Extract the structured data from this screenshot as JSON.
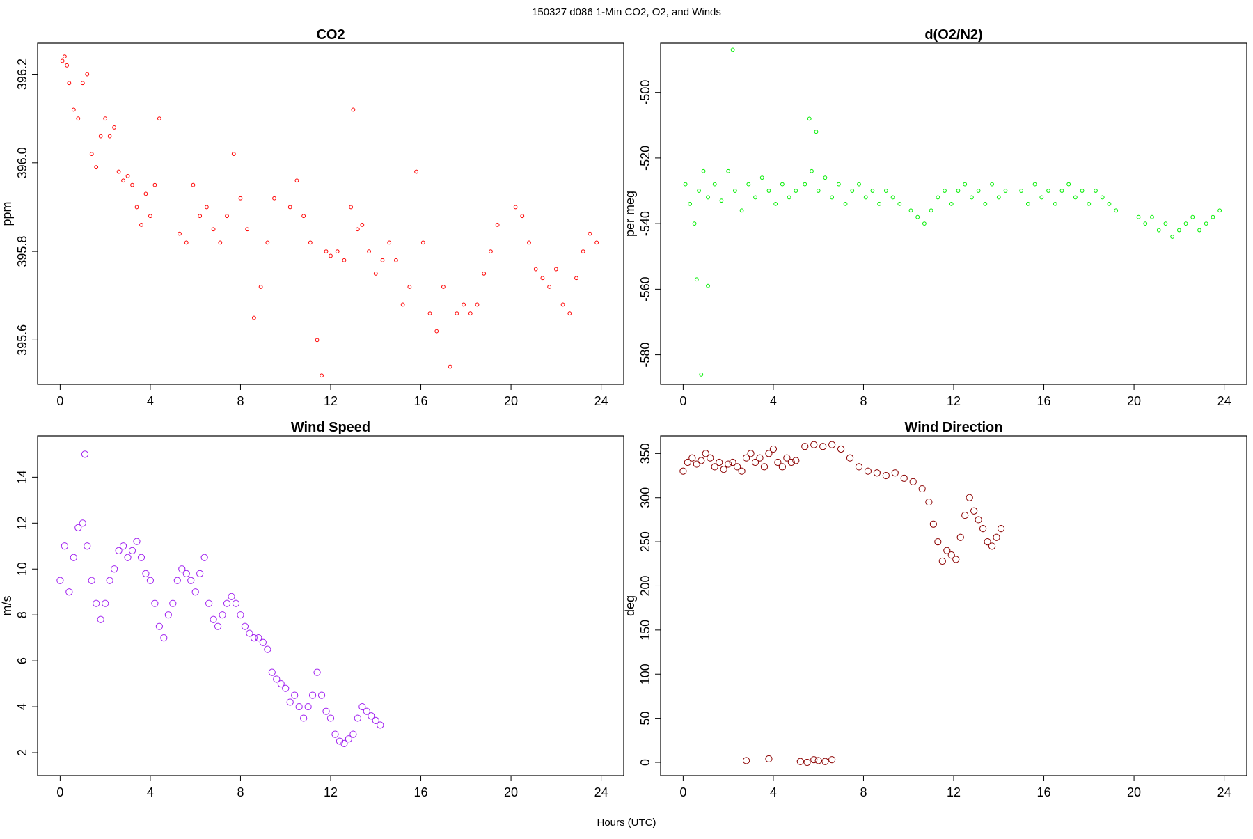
{
  "page_title": "150327   d086   1-Min CO2, O2, and Winds",
  "x_axis_label": "Hours (UTC)",
  "chart_data": [
    {
      "type": "scatter",
      "id": "co2",
      "title": "CO2",
      "ylabel": "ppm",
      "xlabel": "",
      "xlim": [
        -1,
        25
      ],
      "ylim": [
        395.5,
        396.27
      ],
      "x_ticks": [
        0,
        4,
        8,
        12,
        16,
        20,
        24
      ],
      "y_ticks": [
        395.6,
        395.8,
        396.0,
        396.2
      ],
      "y_tick_labels": [
        "395.6",
        "395.8",
        "396.0",
        "396.2"
      ],
      "marker_color": "#ff0000",
      "grid": false,
      "x": [
        0.1,
        0.2,
        0.3,
        0.4,
        0.6,
        0.8,
        1.0,
        1.2,
        1.4,
        1.6,
        1.8,
        2.0,
        2.2,
        2.4,
        2.6,
        2.8,
        3.0,
        3.2,
        3.4,
        3.6,
        3.8,
        4.0,
        4.2,
        4.4,
        5.3,
        5.6,
        5.9,
        6.2,
        6.5,
        6.8,
        7.1,
        7.4,
        7.7,
        8.0,
        8.3,
        8.6,
        8.9,
        9.2,
        9.5,
        10.2,
        10.5,
        10.8,
        11.1,
        11.4,
        11.6,
        11.8,
        12.0,
        12.3,
        12.6,
        12.9,
        13.0,
        13.2,
        13.4,
        13.7,
        14.0,
        14.3,
        14.6,
        14.9,
        15.2,
        15.5,
        15.8,
        16.1,
        16.4,
        16.7,
        17.0,
        17.3,
        17.6,
        17.9,
        18.2,
        18.5,
        18.8,
        19.1,
        19.4,
        20.2,
        20.5,
        20.8,
        21.1,
        21.4,
        21.7,
        22.0,
        22.3,
        22.6,
        22.9,
        23.2,
        23.5,
        23.8
      ],
      "y": [
        396.23,
        396.24,
        396.22,
        396.18,
        396.12,
        396.1,
        396.18,
        396.2,
        396.02,
        395.99,
        396.06,
        396.1,
        396.06,
        396.08,
        395.98,
        395.96,
        395.97,
        395.95,
        395.9,
        395.86,
        395.93,
        395.88,
        395.95,
        396.1,
        395.84,
        395.82,
        395.95,
        395.88,
        395.9,
        395.85,
        395.82,
        395.88,
        396.02,
        395.92,
        395.85,
        395.65,
        395.72,
        395.82,
        395.92,
        395.9,
        395.96,
        395.88,
        395.82,
        395.6,
        395.52,
        395.8,
        395.79,
        395.8,
        395.78,
        395.9,
        396.12,
        395.85,
        395.86,
        395.8,
        395.75,
        395.78,
        395.82,
        395.78,
        395.68,
        395.72,
        395.98,
        395.82,
        395.66,
        395.62,
        395.72,
        395.54,
        395.66,
        395.68,
        395.66,
        395.68,
        395.75,
        395.8,
        395.86,
        395.9,
        395.88,
        395.82,
        395.76,
        395.74,
        395.72,
        395.76,
        395.68,
        395.66,
        395.74,
        395.8,
        395.84,
        395.82
      ]
    },
    {
      "type": "scatter",
      "id": "o2",
      "title": "d(O2/N2)",
      "ylabel": "per meg",
      "xlabel": "",
      "xlim": [
        -1,
        25
      ],
      "ylim": [
        -589,
        -485
      ],
      "x_ticks": [
        0,
        4,
        8,
        12,
        16,
        20,
        24
      ],
      "y_ticks": [
        -580,
        -560,
        -540,
        -520,
        -500
      ],
      "y_tick_labels": [
        "-580",
        "-560",
        "-540",
        "-520",
        "-500"
      ],
      "marker_color": "#00ee00",
      "grid": false,
      "x": [
        0.1,
        0.3,
        0.5,
        0.7,
        0.9,
        1.1,
        1.4,
        1.7,
        2.0,
        2.3,
        2.6,
        2.9,
        3.2,
        3.5,
        3.8,
        4.1,
        4.4,
        4.7,
        5.0,
        5.4,
        5.7,
        6.0,
        6.3,
        6.6,
        6.9,
        7.2,
        7.5,
        7.8,
        8.1,
        8.4,
        8.7,
        9.0,
        9.3,
        9.6,
        10.1,
        10.4,
        10.7,
        11.0,
        11.3,
        11.6,
        11.9,
        12.2,
        12.5,
        12.8,
        13.1,
        13.4,
        13.7,
        14.0,
        14.3,
        15.0,
        15.3,
        15.6,
        15.9,
        16.2,
        16.5,
        16.8,
        17.1,
        17.4,
        17.7,
        18.0,
        18.3,
        18.6,
        18.9,
        19.2,
        20.2,
        20.5,
        20.8,
        21.1,
        21.4,
        21.7,
        22.0,
        22.3,
        22.6,
        22.9,
        23.2,
        23.5,
        23.8,
        0.8,
        2.2,
        1.1,
        5.6,
        5.9,
        0.6
      ],
      "y": [
        -528,
        -534,
        -540,
        -530,
        -524,
        -532,
        -528,
        -533,
        -524,
        -530,
        -536,
        -528,
        -532,
        -526,
        -530,
        -534,
        -528,
        -532,
        -530,
        -528,
        -524,
        -530,
        -526,
        -532,
        -528,
        -534,
        -530,
        -528,
        -532,
        -530,
        -534,
        -530,
        -532,
        -534,
        -536,
        -538,
        -540,
        -536,
        -532,
        -530,
        -534,
        -530,
        -528,
        -532,
        -530,
        -534,
        -528,
        -532,
        -530,
        -530,
        -534,
        -528,
        -532,
        -530,
        -534,
        -530,
        -528,
        -532,
        -530,
        -534,
        -530,
        -532,
        -534,
        -536,
        -538,
        -540,
        -538,
        -542,
        -540,
        -544,
        -542,
        -540,
        -538,
        -542,
        -540,
        -538,
        -536,
        -586,
        -487,
        -559,
        -508,
        -512,
        -557
      ]
    },
    {
      "type": "scatter",
      "id": "wind_speed",
      "title": "Wind Speed",
      "ylabel": "m/s",
      "xlabel": "",
      "xlim": [
        -1,
        25
      ],
      "ylim": [
        1.0,
        15.8
      ],
      "x_ticks": [
        0,
        4,
        8,
        12,
        16,
        20,
        24
      ],
      "y_ticks": [
        2,
        4,
        6,
        8,
        10,
        12,
        14
      ],
      "y_tick_labels": [
        "2",
        "4",
        "6",
        "8",
        "10",
        "12",
        "14"
      ],
      "marker_color": "#a020f0",
      "grid": false,
      "x": [
        0.0,
        0.2,
        0.4,
        0.6,
        0.8,
        1.0,
        1.1,
        1.2,
        1.4,
        1.6,
        1.8,
        2.0,
        2.2,
        2.4,
        2.6,
        2.8,
        3.0,
        3.2,
        3.4,
        3.6,
        3.8,
        4.0,
        4.2,
        4.4,
        4.6,
        4.8,
        5.0,
        5.2,
        5.4,
        5.6,
        5.8,
        6.0,
        6.2,
        6.4,
        6.6,
        6.8,
        7.0,
        7.2,
        7.4,
        7.6,
        7.8,
        8.0,
        8.2,
        8.4,
        8.6,
        8.8,
        9.0,
        9.2,
        9.4,
        9.6,
        9.8,
        10.0,
        10.2,
        10.4,
        10.6,
        10.8,
        11.0,
        11.2,
        11.4,
        11.6,
        11.8,
        12.0,
        12.2,
        12.4,
        12.6,
        12.8,
        13.0,
        13.2,
        13.4,
        13.6,
        13.8,
        14.0,
        14.2
      ],
      "y": [
        9.5,
        11.0,
        9.0,
        10.5,
        11.8,
        12.0,
        15.0,
        11.0,
        9.5,
        8.5,
        7.8,
        8.5,
        9.5,
        10.0,
        10.8,
        11.0,
        10.5,
        10.8,
        11.2,
        10.5,
        9.8,
        9.5,
        8.5,
        7.5,
        7.0,
        8.0,
        8.5,
        9.5,
        10.0,
        9.8,
        9.5,
        9.0,
        9.8,
        10.5,
        8.5,
        7.8,
        7.5,
        8.0,
        8.5,
        8.8,
        8.5,
        8.0,
        7.5,
        7.2,
        7.0,
        7.0,
        6.8,
        6.5,
        5.5,
        5.2,
        5.0,
        4.8,
        4.2,
        4.5,
        4.0,
        3.5,
        4.0,
        4.5,
        5.5,
        4.5,
        3.8,
        3.5,
        2.8,
        2.5,
        2.4,
        2.6,
        2.8,
        3.5,
        4.0,
        3.8,
        3.6,
        3.4,
        3.2
      ]
    },
    {
      "type": "scatter",
      "id": "wind_direction",
      "title": "Wind Direction",
      "ylabel": "deg",
      "xlabel": "",
      "xlim": [
        -1,
        25
      ],
      "ylim": [
        -15,
        370
      ],
      "x_ticks": [
        0,
        4,
        8,
        12,
        16,
        20,
        24
      ],
      "y_ticks": [
        0,
        50,
        100,
        150,
        200,
        250,
        300,
        350
      ],
      "y_tick_labels": [
        "0",
        "50",
        "100",
        "150",
        "200",
        "250",
        "300",
        "350"
      ],
      "marker_color": "#8b0000",
      "grid": false,
      "x": [
        0.0,
        0.2,
        0.4,
        0.6,
        0.8,
        1.0,
        1.2,
        1.4,
        1.6,
        1.8,
        2.0,
        2.2,
        2.4,
        2.6,
        2.8,
        3.0,
        3.2,
        3.4,
        3.6,
        3.8,
        4.0,
        4.2,
        4.4,
        4.6,
        4.8,
        5.0,
        5.4,
        5.8,
        6.2,
        6.6,
        7.0,
        7.4,
        7.8,
        8.2,
        8.6,
        9.0,
        9.4,
        9.8,
        10.2,
        10.6,
        10.9,
        11.1,
        11.3,
        11.5,
        11.7,
        11.9,
        12.1,
        12.3,
        12.5,
        12.7,
        12.9,
        13.1,
        13.3,
        13.5,
        13.7,
        13.9,
        14.1,
        2.8,
        3.8,
        5.2,
        5.5,
        5.8,
        6.0,
        6.3,
        6.6
      ],
      "y": [
        330,
        340,
        345,
        338,
        342,
        350,
        345,
        335,
        340,
        332,
        338,
        340,
        335,
        330,
        345,
        350,
        340,
        345,
        335,
        350,
        355,
        340,
        335,
        345,
        340,
        342,
        358,
        360,
        358,
        360,
        355,
        345,
        335,
        330,
        328,
        325,
        328,
        322,
        318,
        310,
        295,
        270,
        250,
        228,
        240,
        235,
        230,
        255,
        280,
        300,
        285,
        275,
        265,
        250,
        245,
        255,
        265,
        2,
        4,
        1,
        0,
        3,
        2,
        1,
        3
      ]
    }
  ]
}
